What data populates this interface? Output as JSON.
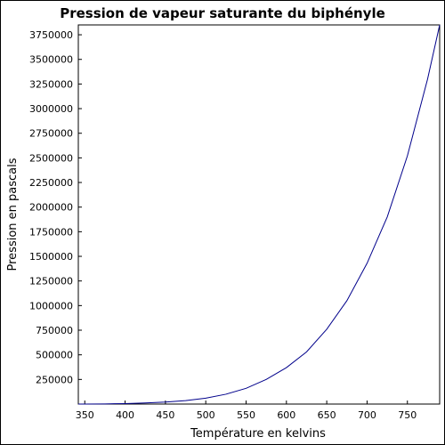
{
  "chart_data": {
    "type": "line",
    "title": "Pression de vapeur saturante du biphényle",
    "xlabel": "Température en kelvins",
    "ylabel": "Pression en pascals",
    "xlim": [
      342,
      790
    ],
    "ylim": [
      0,
      3850000
    ],
    "xticks": [
      350,
      400,
      450,
      500,
      550,
      600,
      650,
      700,
      750
    ],
    "yticks": [
      250000,
      500000,
      750000,
      1000000,
      1250000,
      1500000,
      1750000,
      2000000,
      2250000,
      2500000,
      2750000,
      3000000,
      3250000,
      3500000,
      3750000
    ],
    "grid": false,
    "legend": "none",
    "series": [
      {
        "color": "#00008b",
        "x": [
          342,
          350,
          375,
          400,
          425,
          450,
          475,
          500,
          525,
          550,
          575,
          600,
          625,
          650,
          675,
          700,
          725,
          750,
          775,
          790
        ],
        "y": [
          0,
          300,
          1500,
          5000,
          11000,
          20000,
          35000,
          60000,
          100000,
          160000,
          250000,
          370000,
          530000,
          760000,
          1050000,
          1430000,
          1900000,
          2520000,
          3300000,
          3850000
        ]
      }
    ]
  }
}
